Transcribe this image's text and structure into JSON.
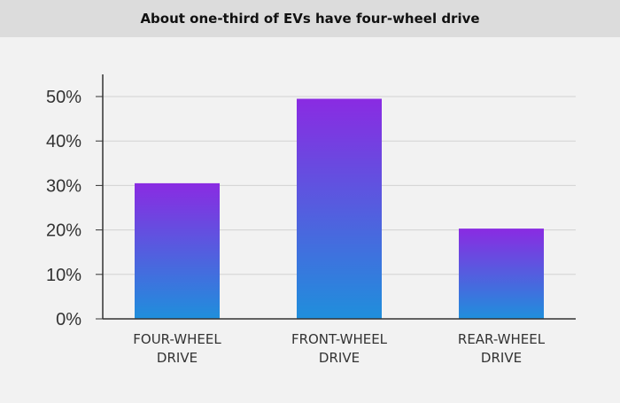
{
  "chart_data": {
    "type": "bar",
    "title": "About one-third of EVs have four-wheel drive",
    "categories": [
      [
        "FOUR-WHEEL",
        "DRIVE"
      ],
      [
        "FRONT-WHEEL",
        "DRIVE"
      ],
      [
        "REAR-WHEEL",
        "DRIVE"
      ]
    ],
    "values": [
      30.5,
      49.5,
      20.3
    ],
    "ylim": [
      0,
      55
    ],
    "yticks": [
      0,
      10,
      20,
      30,
      40,
      50
    ],
    "ytick_suffix": "%",
    "grid": true,
    "bar_gradient": {
      "top": "#8a2be2",
      "bottom": "#1f8fdc"
    },
    "xlabel": "",
    "ylabel": ""
  }
}
